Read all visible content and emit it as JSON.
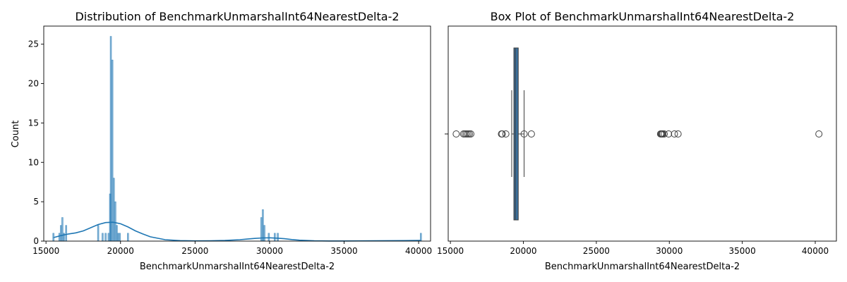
{
  "chart_data": [
    {
      "type": "histogram",
      "title": "Distribution of BenchmarkUnmarshalInt64NearestDelta-2",
      "xlabel": "BenchmarkUnmarshalInt64NearestDelta-2",
      "ylabel": "Count",
      "xlim": [
        14850,
        40800
      ],
      "ylim": [
        0,
        27.3
      ],
      "xticks": [
        15000,
        20000,
        25000,
        30000,
        35000,
        40000
      ],
      "yticks": [
        0,
        5,
        10,
        15,
        20,
        25
      ],
      "bar_color": "#1f77b4",
      "kde_color": "#1f77b4",
      "bins": [
        {
          "x": 15500,
          "count": 1
        },
        {
          "x": 15900,
          "count": 1
        },
        {
          "x": 16000,
          "count": 2
        },
        {
          "x": 16100,
          "count": 3
        },
        {
          "x": 16200,
          "count": 1
        },
        {
          "x": 16350,
          "count": 2
        },
        {
          "x": 18500,
          "count": 2
        },
        {
          "x": 18800,
          "count": 1
        },
        {
          "x": 19000,
          "count": 1
        },
        {
          "x": 19200,
          "count": 1
        },
        {
          "x": 19300,
          "count": 6
        },
        {
          "x": 19350,
          "count": 26
        },
        {
          "x": 19450,
          "count": 23
        },
        {
          "x": 19550,
          "count": 8
        },
        {
          "x": 19650,
          "count": 5
        },
        {
          "x": 19750,
          "count": 2
        },
        {
          "x": 19850,
          "count": 1
        },
        {
          "x": 19950,
          "count": 1
        },
        {
          "x": 20500,
          "count": 1
        },
        {
          "x": 29450,
          "count": 3
        },
        {
          "x": 29550,
          "count": 4
        },
        {
          "x": 29650,
          "count": 2
        },
        {
          "x": 29950,
          "count": 1
        },
        {
          "x": 30350,
          "count": 1
        },
        {
          "x": 30550,
          "count": 1
        },
        {
          "x": 40150,
          "count": 1
        }
      ],
      "bin_width": 95,
      "kde": {
        "x": [
          15500,
          16000,
          16500,
          17000,
          17500,
          18000,
          18500,
          19000,
          19500,
          20000,
          20500,
          21000,
          21500,
          22000,
          23000,
          24000,
          25000,
          26000,
          27000,
          28000,
          28500,
          29000,
          29500,
          30000,
          30500,
          31000,
          31500,
          32000,
          33000,
          34000,
          35000,
          36000,
          37000,
          38000,
          39000,
          40000,
          40150
        ],
        "y": [
          0.45,
          0.7,
          0.9,
          1.05,
          1.3,
          1.7,
          2.1,
          2.35,
          2.4,
          2.2,
          1.8,
          1.3,
          0.9,
          0.55,
          0.18,
          0.06,
          0.03,
          0.04,
          0.08,
          0.18,
          0.26,
          0.34,
          0.4,
          0.42,
          0.38,
          0.3,
          0.2,
          0.12,
          0.04,
          0.02,
          0.02,
          0.03,
          0.04,
          0.05,
          0.06,
          0.08,
          0.09
        ]
      }
    },
    {
      "type": "box",
      "title": "Box Plot of BenchmarkUnmarshalInt64NearestDelta-2",
      "xlabel": "BenchmarkUnmarshalInt64NearestDelta-2",
      "xlim": [
        14850,
        41450
      ],
      "xticks": [
        15000,
        20000,
        25000,
        30000,
        35000,
        40000
      ],
      "box_color": "#3a6e9a",
      "q1": 19350,
      "median": 19450,
      "q3": 19650,
      "whisker_low": 19200,
      "whisker_high": 20050,
      "outliers": [
        15400,
        15900,
        16000,
        16100,
        16200,
        16300,
        16400,
        18500,
        18550,
        18800,
        20050,
        20550,
        29400,
        29450,
        29500,
        29550,
        29650,
        29950,
        30350,
        30600,
        40250
      ]
    }
  ]
}
